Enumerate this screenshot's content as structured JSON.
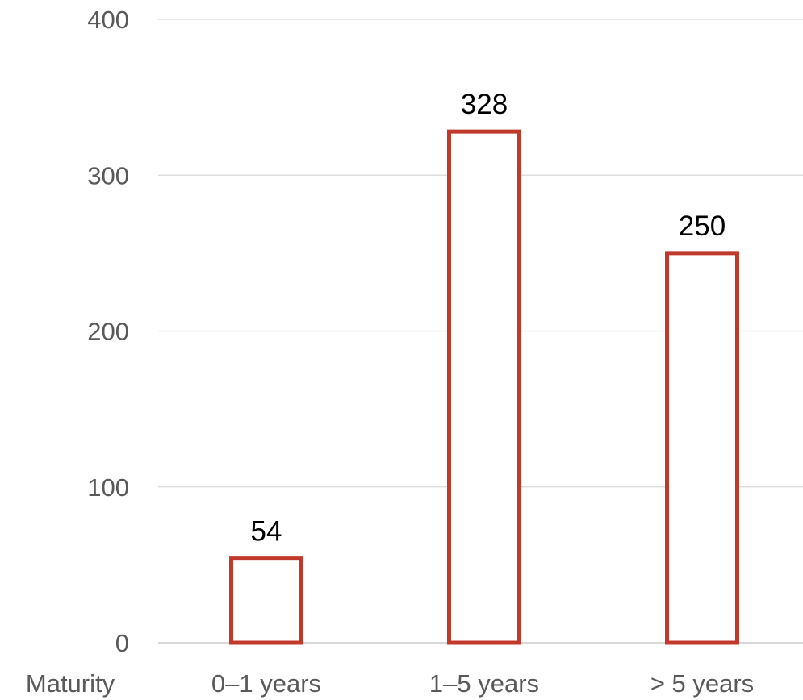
{
  "chart_data": {
    "type": "bar",
    "xlabel": "Maturity",
    "categories": [
      "0–1 years",
      "1–5 years",
      "> 5 years"
    ],
    "values": [
      54,
      328,
      250
    ],
    "data_labels": [
      "54",
      "328",
      "250"
    ],
    "ylim": [
      0,
      400
    ],
    "yticks": [
      0,
      100,
      200,
      300,
      400
    ],
    "ytick_labels": [
      "0",
      "100",
      "200",
      "300",
      "400"
    ],
    "grid": true,
    "legend": "none",
    "colors": {
      "bar_outline": "#c0392b",
      "bar_fill": "#ffffff",
      "gridline": "#d9d9d9",
      "tick_text": "#595959",
      "label_text": "#000000"
    }
  }
}
